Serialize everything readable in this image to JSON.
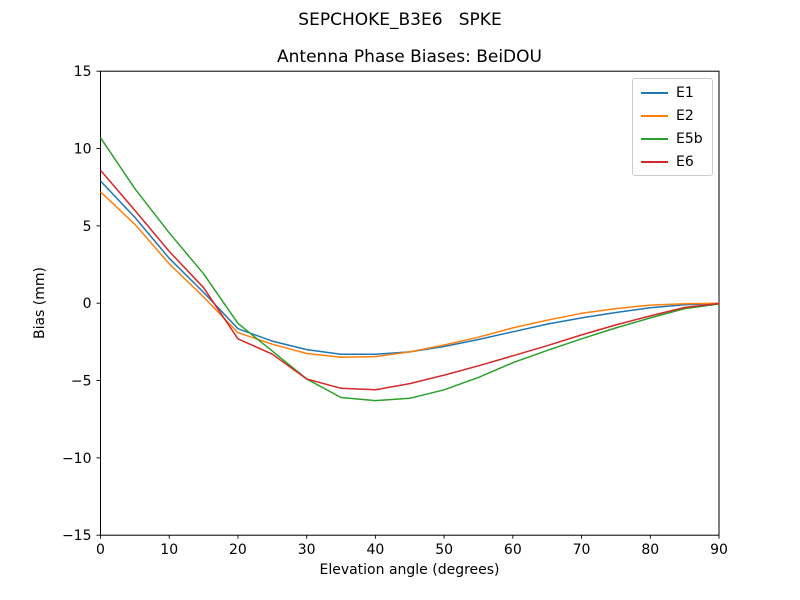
{
  "chart_data": {
    "type": "line",
    "suptitle": "SEPCHOKE_B3E6   SPKE",
    "title": "Antenna Phase Biases: BeiDOU",
    "xlabel": "Elevation angle (degrees)",
    "ylabel": "Bias (mm)",
    "xlim": [
      0,
      90
    ],
    "ylim": [
      -15,
      15
    ],
    "xticks": [
      0,
      10,
      20,
      30,
      40,
      50,
      60,
      70,
      80,
      90
    ],
    "xtick_labels": [
      "0",
      "10",
      "20",
      "30",
      "40",
      "50",
      "60",
      "70",
      "80",
      "90"
    ],
    "yticks": [
      15,
      10,
      5,
      0,
      -5,
      -10,
      -15
    ],
    "ytick_labels": [
      "15",
      "10",
      "5",
      "0",
      "−5",
      "−10",
      "−15"
    ],
    "grid": false,
    "legend_position": "upper right",
    "x": [
      0,
      5,
      10,
      15,
      20,
      25,
      30,
      35,
      40,
      45,
      50,
      55,
      60,
      65,
      70,
      75,
      80,
      85,
      90
    ],
    "series": [
      {
        "name": "E1",
        "color": "#1f77b4",
        "values": [
          7.9,
          5.55,
          2.9,
          0.7,
          -1.65,
          -2.45,
          -3.0,
          -3.3,
          -3.3,
          -3.15,
          -2.8,
          -2.35,
          -1.85,
          -1.35,
          -0.95,
          -0.6,
          -0.3,
          -0.1,
          -0.02
        ]
      },
      {
        "name": "E2",
        "color": "#ff7f0e",
        "values": [
          7.2,
          5.1,
          2.55,
          0.4,
          -1.9,
          -2.65,
          -3.25,
          -3.5,
          -3.45,
          -3.15,
          -2.7,
          -2.2,
          -1.6,
          -1.1,
          -0.65,
          -0.35,
          -0.12,
          -0.03,
          0.0
        ]
      },
      {
        "name": "E5b",
        "color": "#2ca02c",
        "values": [
          10.7,
          7.4,
          4.55,
          1.9,
          -1.3,
          -3.1,
          -4.9,
          -6.1,
          -6.3,
          -6.15,
          -5.6,
          -4.8,
          -3.85,
          -3.05,
          -2.3,
          -1.6,
          -0.95,
          -0.35,
          -0.05
        ]
      },
      {
        "name": "E6",
        "color": "#d62728",
        "values": [
          8.6,
          6.0,
          3.35,
          1.0,
          -2.3,
          -3.3,
          -4.9,
          -5.5,
          -5.6,
          -5.2,
          -4.65,
          -4.05,
          -3.4,
          -2.75,
          -2.05,
          -1.4,
          -0.82,
          -0.28,
          -0.02
        ]
      }
    ]
  }
}
